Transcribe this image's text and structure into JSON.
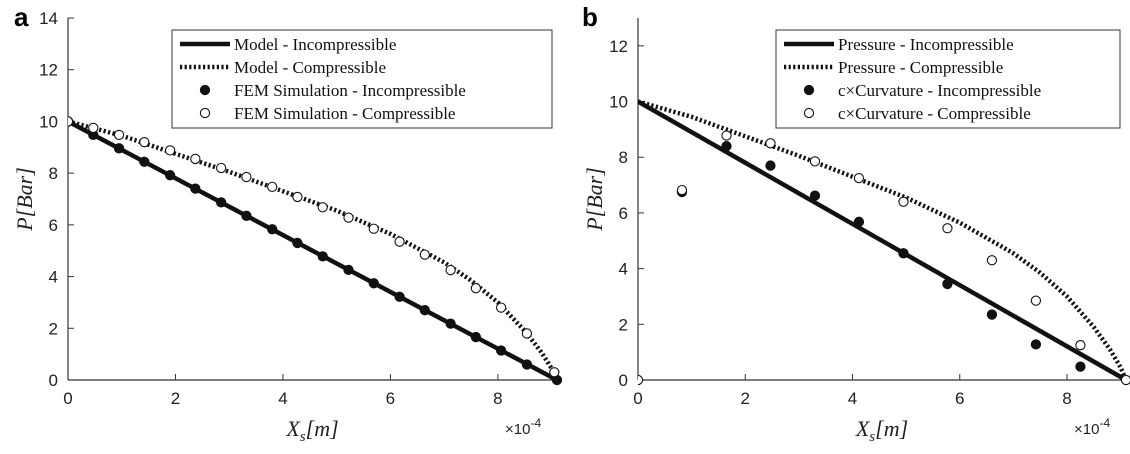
{
  "chart_data": [
    {
      "type": "line",
      "panel_label": "a",
      "xlabel": "X_s[m]",
      "ylabel": "P[Bar]",
      "x_multiplier": "×10-4",
      "xlim": [
        0,
        9.1
      ],
      "ylim": [
        0,
        14
      ],
      "xticks": [
        0,
        2,
        4,
        6,
        8
      ],
      "yticks": [
        0,
        2,
        4,
        6,
        8,
        10,
        12,
        14
      ],
      "grid": false,
      "legend_position": "top-right",
      "series": [
        {
          "name": "Model - Incompressible",
          "style": "solid",
          "x": [
            0,
            9.1
          ],
          "y": [
            10,
            0
          ]
        },
        {
          "name": "Model - Compressible",
          "style": "dotted",
          "x": [
            0,
            1,
            2,
            3,
            4,
            5,
            6,
            7,
            7.5,
            8,
            8.5,
            8.8,
            9.0,
            9.1
          ],
          "y": [
            10,
            9.45,
            8.75,
            8.05,
            7.3,
            6.55,
            5.65,
            4.55,
            3.85,
            3.0,
            1.9,
            1.1,
            0.45,
            0
          ]
        },
        {
          "name": "FEM Simulation - Incompressible",
          "style": "filled-marker",
          "x": [
            0,
            0.47,
            0.95,
            1.42,
            1.9,
            2.37,
            2.85,
            3.32,
            3.8,
            4.27,
            4.74,
            5.22,
            5.69,
            6.17,
            6.64,
            7.12,
            7.59,
            8.06,
            8.54,
            9.1
          ],
          "y": [
            10,
            9.48,
            8.96,
            8.44,
            7.92,
            7.4,
            6.87,
            6.35,
            5.83,
            5.3,
            4.78,
            4.26,
            3.74,
            3.22,
            2.7,
            2.18,
            1.66,
            1.14,
            0.6,
            0
          ]
        },
        {
          "name": "FEM Simulation - Compressible",
          "style": "open-marker",
          "x": [
            0,
            0.47,
            0.95,
            1.42,
            1.9,
            2.37,
            2.85,
            3.32,
            3.8,
            4.27,
            4.74,
            5.22,
            5.69,
            6.17,
            6.64,
            7.12,
            7.59,
            8.06,
            8.54,
            9.05
          ],
          "y": [
            10,
            9.75,
            9.48,
            9.2,
            8.88,
            8.55,
            8.2,
            7.85,
            7.47,
            7.08,
            6.68,
            6.28,
            5.85,
            5.35,
            4.85,
            4.25,
            3.55,
            2.8,
            1.8,
            0.3
          ]
        }
      ]
    },
    {
      "type": "line",
      "panel_label": "b",
      "xlabel": "X_s[m]",
      "ylabel": "P[Bar]",
      "x_multiplier": "×10-4",
      "xlim": [
        0,
        9.1
      ],
      "ylim": [
        0,
        13
      ],
      "xticks": [
        0,
        2,
        4,
        6,
        8
      ],
      "yticks": [
        0,
        2,
        4,
        6,
        8,
        10,
        12
      ],
      "grid": false,
      "legend_position": "top-right",
      "series": [
        {
          "name": "Pressure - Incompressible",
          "style": "solid",
          "x": [
            0,
            9.1
          ],
          "y": [
            10,
            0
          ]
        },
        {
          "name": "Pressure - Compressible",
          "style": "dotted",
          "x": [
            0,
            1,
            2,
            3,
            4,
            5,
            6,
            7,
            7.5,
            8,
            8.5,
            8.8,
            9.0,
            9.1
          ],
          "y": [
            10,
            9.45,
            8.75,
            8.05,
            7.3,
            6.55,
            5.65,
            4.55,
            3.85,
            3.0,
            1.9,
            1.1,
            0.45,
            0
          ]
        },
        {
          "name": "c×Curvature - Incompressible",
          "style": "filled-marker",
          "x": [
            0.82,
            1.65,
            2.47,
            3.3,
            4.12,
            4.95,
            5.77,
            6.6,
            7.42,
            8.25
          ],
          "y": [
            6.75,
            8.4,
            7.7,
            6.62,
            5.68,
            4.55,
            3.45,
            2.35,
            1.28,
            0.48
          ]
        },
        {
          "name": "c×Curvature - Compressible",
          "style": "open-marker",
          "x": [
            0,
            0.82,
            1.65,
            2.47,
            3.3,
            4.12,
            4.95,
            5.77,
            6.6,
            7.42,
            8.25,
            9.1
          ],
          "y": [
            0,
            6.82,
            8.78,
            8.5,
            7.85,
            7.25,
            6.4,
            5.45,
            4.3,
            2.85,
            1.25,
            0
          ]
        }
      ]
    }
  ]
}
